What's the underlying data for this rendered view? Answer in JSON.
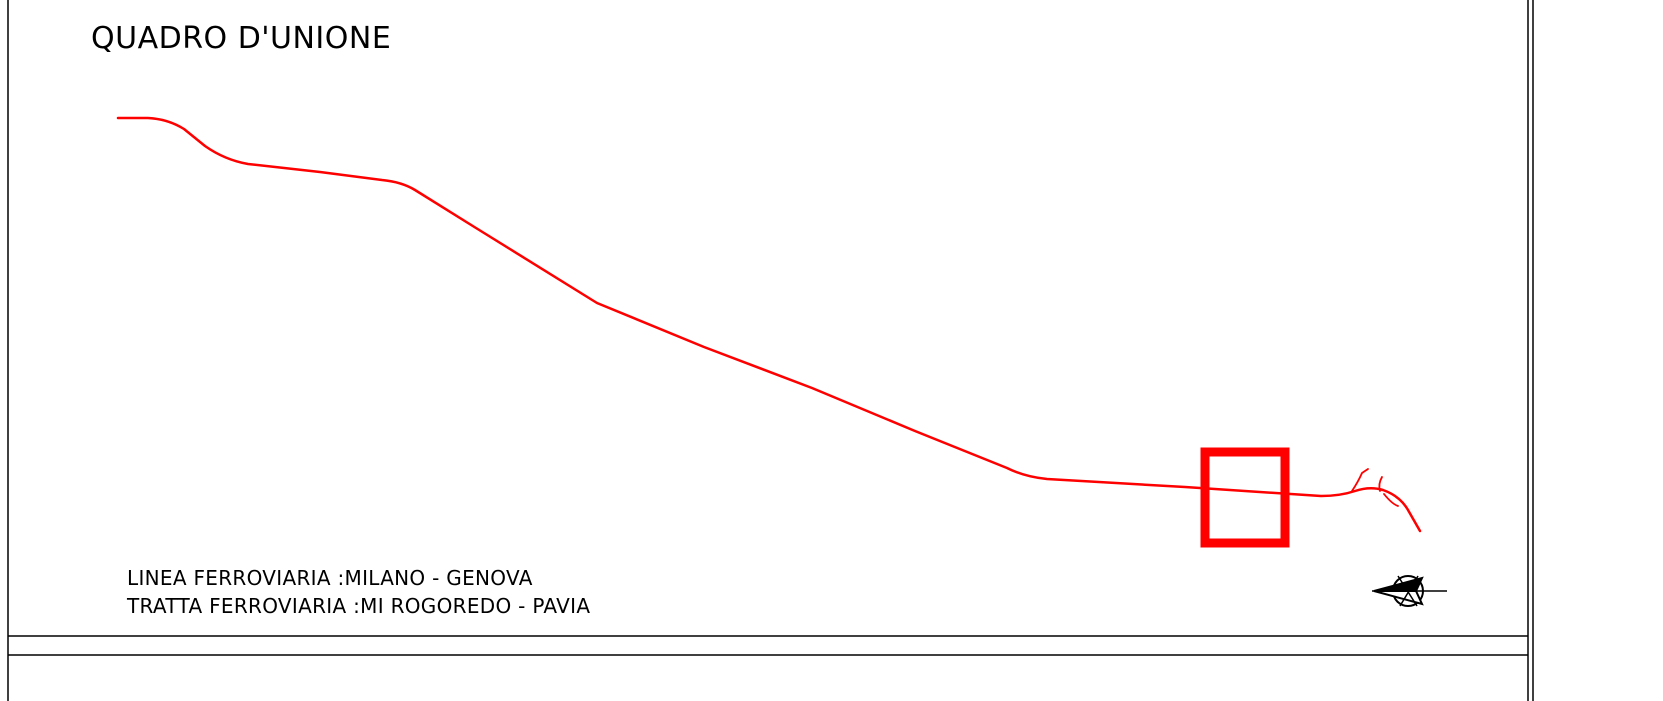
{
  "title": "QUADRO D'UNIONE",
  "captions": {
    "line": "LINEA FERROVIARIA :MILANO - GENOVA",
    "section": "TRATTA FERROVIARIA :MI ROGOREDO - PAVIA"
  },
  "colors": {
    "route": "#ff0000",
    "frame": "#000000",
    "background": "#ffffff"
  },
  "icons": {
    "north_arrow": "north-arrow-icon"
  }
}
